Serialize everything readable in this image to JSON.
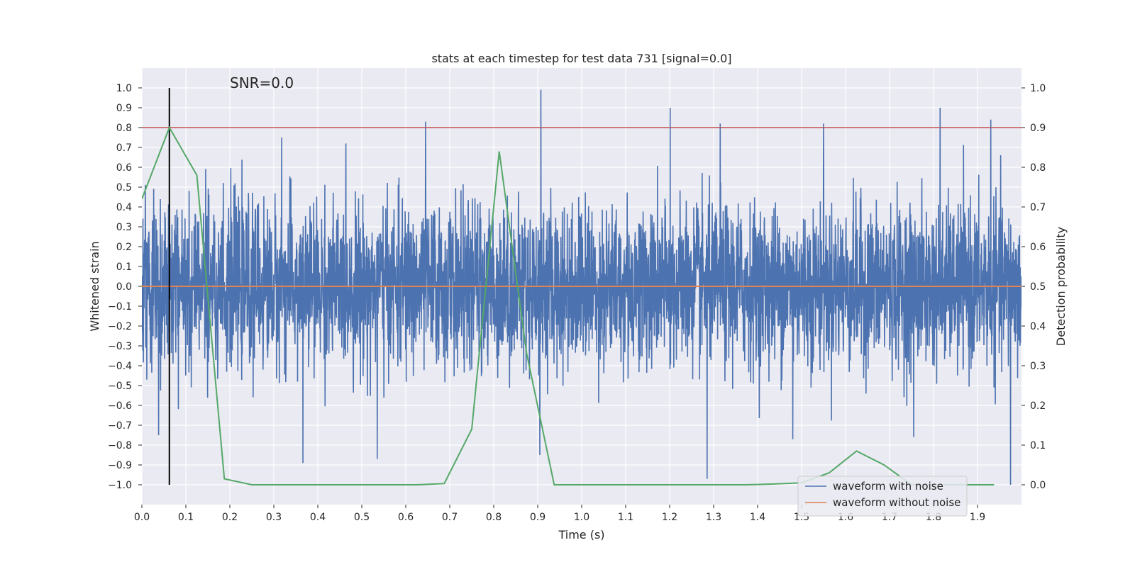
{
  "chart_data": {
    "type": "line",
    "title": "stats at each timestep for test data 731 [signal=0.0]",
    "xlabel": "Time (s)",
    "ylabel": "Whitened strain",
    "y2label": "Detection probability",
    "xlim": [
      0.0,
      2.0
    ],
    "ylim": [
      -1.1,
      1.1
    ],
    "y2lim": [
      -0.05,
      1.05
    ],
    "xticks": [
      0.0,
      0.1,
      0.2,
      0.3,
      0.4,
      0.5,
      0.6,
      0.7,
      0.8,
      0.9,
      1.0,
      1.1,
      1.2,
      1.3,
      1.4,
      1.5,
      1.6,
      1.7,
      1.8,
      1.9
    ],
    "xtick_labels": [
      "0.0",
      "0.1",
      "0.2",
      "0.3",
      "0.4",
      "0.5",
      "0.6",
      "0.7",
      "0.8",
      "0.9",
      "1.0",
      "1.1",
      "1.2",
      "1.3",
      "1.4",
      "1.5",
      "1.6",
      "1.7",
      "1.8",
      "1.9"
    ],
    "yticks": [
      1.0,
      0.9,
      0.8,
      0.7,
      0.6,
      0.5,
      0.4,
      0.3,
      0.2,
      0.1,
      0.0,
      -0.1,
      -0.2,
      -0.3,
      -0.4,
      -0.5,
      -0.6,
      -0.7,
      -0.8,
      -0.9,
      -1.0
    ],
    "ytick_labels": [
      "1.0",
      "0.9",
      "0.8",
      "0.7",
      "0.6",
      "0.5",
      "0.4",
      "0.3",
      "0.2",
      "0.1",
      "0.0",
      "−0.1",
      "−0.2",
      "−0.3",
      "−0.4",
      "−0.5",
      "−0.6",
      "−0.7",
      "−0.8",
      "−0.9",
      "−1.0"
    ],
    "y2ticks": [
      1.0,
      0.9,
      0.8,
      0.7,
      0.6,
      0.5,
      0.4,
      0.3,
      0.2,
      0.1,
      0.0
    ],
    "y2tick_labels": [
      "1.0",
      "0.9",
      "0.8",
      "0.7",
      "0.6",
      "0.5",
      "0.4",
      "0.3",
      "0.2",
      "0.1",
      "0.0"
    ],
    "annotation": "SNR=0.0",
    "noise_waveform": {
      "name": "waveform with noise",
      "color": "#4c72b0",
      "sample_rate": 2048,
      "duration": 2.0,
      "amplitude_std": 0.2,
      "seed": 731,
      "spikes": [
        {
          "t": 0.907,
          "v": 0.99
        },
        {
          "t": 1.201,
          "v": 0.9
        },
        {
          "t": 1.815,
          "v": 0.9
        },
        {
          "t": 1.93,
          "v": 0.84
        },
        {
          "t": 1.315,
          "v": 0.82
        },
        {
          "t": 1.55,
          "v": 0.82
        },
        {
          "t": 0.645,
          "v": 0.83
        },
        {
          "t": 0.318,
          "v": 0.75
        },
        {
          "t": 1.285,
          "v": -0.97
        },
        {
          "t": 1.975,
          "v": -1.0
        },
        {
          "t": 0.366,
          "v": -0.89
        },
        {
          "t": 0.535,
          "v": -0.87
        },
        {
          "t": 0.905,
          "v": -0.85
        },
        {
          "t": 0.038,
          "v": -0.75
        },
        {
          "t": 1.755,
          "v": -0.76
        },
        {
          "t": 1.48,
          "v": -0.77
        }
      ]
    },
    "clean_waveform": {
      "name": "waveform without noise",
      "color": "#dd8452",
      "value": 0.0
    },
    "detection_probability": {
      "name": "detection probability",
      "color": "#55a868",
      "x": [
        0.0,
        0.0625,
        0.125,
        0.1875,
        0.25,
        0.3125,
        0.375,
        0.4375,
        0.5,
        0.5625,
        0.625,
        0.6875,
        0.75,
        0.8125,
        0.875,
        0.9375,
        1.0,
        1.0625,
        1.125,
        1.1875,
        1.25,
        1.3125,
        1.375,
        1.4375,
        1.5,
        1.5625,
        1.625,
        1.6875,
        1.75,
        1.8125,
        1.875,
        1.9375
      ],
      "y": [
        0.72,
        0.9,
        0.78,
        0.015,
        0.0,
        0.0,
        0.0,
        0.0,
        0.0,
        0.0,
        0.0,
        0.003,
        0.14,
        0.84,
        0.33,
        0.0,
        0.0,
        0.0,
        0.0,
        0.0,
        0.0,
        0.0,
        0.0,
        0.002,
        0.005,
        0.03,
        0.085,
        0.05,
        0.0,
        0.0,
        0.0,
        0.0
      ]
    },
    "threshold": {
      "value": 0.9,
      "axis": "y2",
      "color": "#c44e52"
    },
    "event_marker": {
      "t": 0.0625,
      "color": "#000000"
    },
    "legend": {
      "placement": "lower-right",
      "entries": [
        {
          "label": "waveform with noise",
          "color": "#4c72b0"
        },
        {
          "label": "waveform without noise",
          "color": "#dd8452"
        }
      ]
    },
    "grid": true,
    "background": "#eaeaf2"
  }
}
